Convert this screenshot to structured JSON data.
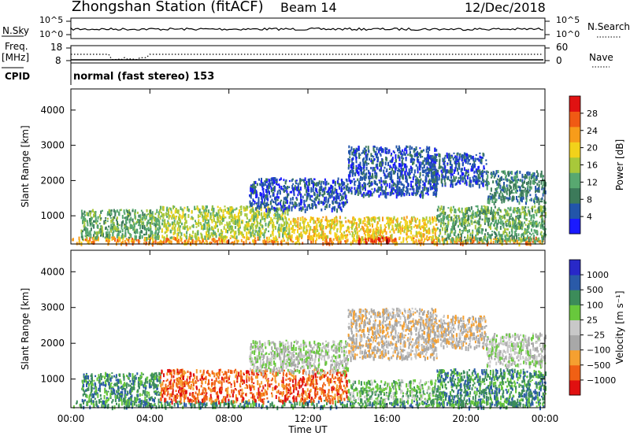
{
  "header": {
    "title": "Zhongshan Station (fitACF)",
    "beam": "Beam 14",
    "date": "12/Dec/2018"
  },
  "top_panels": {
    "nsky_label": "N.Sky",
    "nsky_ticks": [
      "10^5",
      "10^0"
    ],
    "nsearch_label": "N.Search",
    "nsearch_ticks": [
      "10^5",
      "10^0"
    ],
    "freq_label_1": "Freq.",
    "freq_label_2": "[MHz]",
    "freq_ticks": [
      "18",
      "8"
    ],
    "nave_label": "Nave",
    "nave_ticks": [
      "60",
      "0"
    ],
    "cpid_label": "CPID",
    "cpid_text": "normal (fast stereo) 153"
  },
  "colors": {
    "power": [
      "#1a1aff",
      "#2255aa",
      "#3c7a5a",
      "#58a870",
      "#a8c83a",
      "#f2d21a",
      "#f79c1a",
      "#f05a14",
      "#e01212"
    ],
    "velocity": [
      "#e01010",
      "#f06014",
      "#f5a030",
      "#a8a8a8",
      "#c8c8c8",
      "#68c83c",
      "#3c8c5a",
      "#2a5aa8",
      "#2828c8"
    ]
  },
  "chart_data": [
    {
      "type": "heatmap",
      "name_key": "power",
      "ylabel": "Slant Range [km]",
      "xlabel": "Time UT",
      "x_ticks": [
        "00:00",
        "04:00",
        "08:00",
        "12:00",
        "16:00",
        "20:00",
        "00:00"
      ],
      "xlim_hours": [
        0,
        24
      ],
      "ylim": [
        200,
        4600
      ],
      "y_ticks": [
        1000,
        2000,
        3000,
        4000
      ],
      "colorbar_label": "Power [dB]",
      "colorbar_ticks": [
        "28",
        "24",
        "20",
        "16",
        "12",
        "8",
        "4"
      ],
      "colorbar_range": [
        0,
        32
      ],
      "scatter_regions": [
        {
          "t": [
            0.0,
            24.0
          ],
          "r": [
            250,
            420
          ],
          "level": 6
        },
        {
          "t": [
            0.5,
            4.5
          ],
          "r": [
            400,
            1200
          ],
          "level": 3
        },
        {
          "t": [
            4.5,
            11.0
          ],
          "r": [
            400,
            1300
          ],
          "level": 4
        },
        {
          "t": [
            11.0,
            18.5
          ],
          "r": [
            400,
            1000
          ],
          "level": 5
        },
        {
          "t": [
            14.5,
            16.5
          ],
          "r": [
            280,
            420
          ],
          "level": 8
        },
        {
          "t": [
            9.0,
            14.0
          ],
          "r": [
            1200,
            2100
          ],
          "level": 1
        },
        {
          "t": [
            14.0,
            18.5
          ],
          "r": [
            1600,
            3000
          ],
          "level": 1
        },
        {
          "t": [
            18.0,
            21.0
          ],
          "r": [
            1900,
            2800
          ],
          "level": 1
        },
        {
          "t": [
            21.0,
            24.0
          ],
          "r": [
            1400,
            2300
          ],
          "level": 2
        },
        {
          "t": [
            18.5,
            24.0
          ],
          "r": [
            300,
            1300
          ],
          "level": 3
        }
      ]
    },
    {
      "type": "heatmap",
      "name_key": "velocity",
      "ylabel": "Slant Range [km]",
      "xlabel": "Time UT",
      "x_ticks": [
        "00:00",
        "04:00",
        "08:00",
        "12:00",
        "16:00",
        "20:00",
        "00:00"
      ],
      "xlim_hours": [
        0,
        24
      ],
      "ylim": [
        200,
        4600
      ],
      "y_ticks": [
        1000,
        2000,
        3000,
        4000
      ],
      "colorbar_label": "Velocity [m s⁻¹]",
      "colorbar_ticks": [
        "1000",
        "500",
        "100",
        "25",
        "−25",
        "−100",
        "−500",
        "−1000"
      ],
      "scatter_regions": [
        {
          "t": [
            0.0,
            24.0
          ],
          "r": [
            250,
            420
          ],
          "level": 6
        },
        {
          "t": [
            0.5,
            4.5
          ],
          "r": [
            400,
            1200
          ],
          "level": 6
        },
        {
          "t": [
            4.5,
            14.0
          ],
          "r": [
            400,
            1300
          ],
          "level": 1
        },
        {
          "t": [
            14.0,
            18.5
          ],
          "r": [
            400,
            1000
          ],
          "level": 5
        },
        {
          "t": [
            9.0,
            14.0
          ],
          "r": [
            1200,
            2100
          ],
          "level": 4
        },
        {
          "t": [
            14.0,
            18.5
          ],
          "r": [
            1600,
            3000
          ],
          "level": 3
        },
        {
          "t": [
            18.0,
            21.0
          ],
          "r": [
            1900,
            2800
          ],
          "level": 3
        },
        {
          "t": [
            21.0,
            24.0
          ],
          "r": [
            1400,
            2300
          ],
          "level": 4
        },
        {
          "t": [
            18.5,
            24.0
          ],
          "r": [
            300,
            1300
          ],
          "level": 6
        }
      ]
    }
  ]
}
